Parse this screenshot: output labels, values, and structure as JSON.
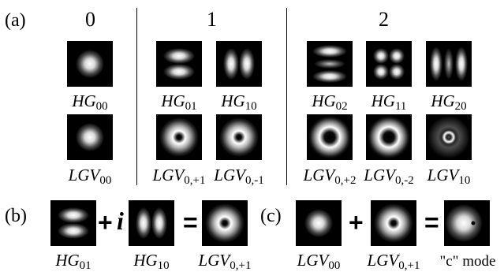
{
  "panel_labels": {
    "a": "(a)",
    "b": "(b)",
    "c": "(c)"
  },
  "group_labels": [
    "0",
    "1",
    "2"
  ],
  "operators": {
    "plus": "+",
    "imag": "i",
    "equals": "="
  },
  "modes": {
    "hg00": {
      "base": "HG",
      "sub": "00",
      "pattern": "gaussian"
    },
    "hg01": {
      "base": "HG",
      "sub": "01",
      "pattern": "hg01"
    },
    "hg10": {
      "base": "HG",
      "sub": "10",
      "pattern": "hg10"
    },
    "hg02": {
      "base": "HG",
      "sub": "02",
      "pattern": "hg02"
    },
    "hg11": {
      "base": "HG",
      "sub": "11",
      "pattern": "hg11"
    },
    "hg20": {
      "base": "HG",
      "sub": "20",
      "pattern": "hg20"
    },
    "lgv00": {
      "base": "LGV",
      "sub": "00",
      "pattern": "gaussian"
    },
    "lgv01p": {
      "base": "LGV",
      "sub": "0,+1",
      "pattern": "donut1"
    },
    "lgv01m": {
      "base": "LGV",
      "sub": "0,-1",
      "pattern": "donut1"
    },
    "lgv02p": {
      "base": "LGV",
      "sub": "0,+2",
      "pattern": "donut2"
    },
    "lgv02m": {
      "base": "LGV",
      "sub": "0,-2",
      "pattern": "donut2"
    },
    "lgv10": {
      "base": "LGV",
      "sub": "10",
      "pattern": "lgv10"
    }
  },
  "c_mode_label": "\"c\" mode"
}
